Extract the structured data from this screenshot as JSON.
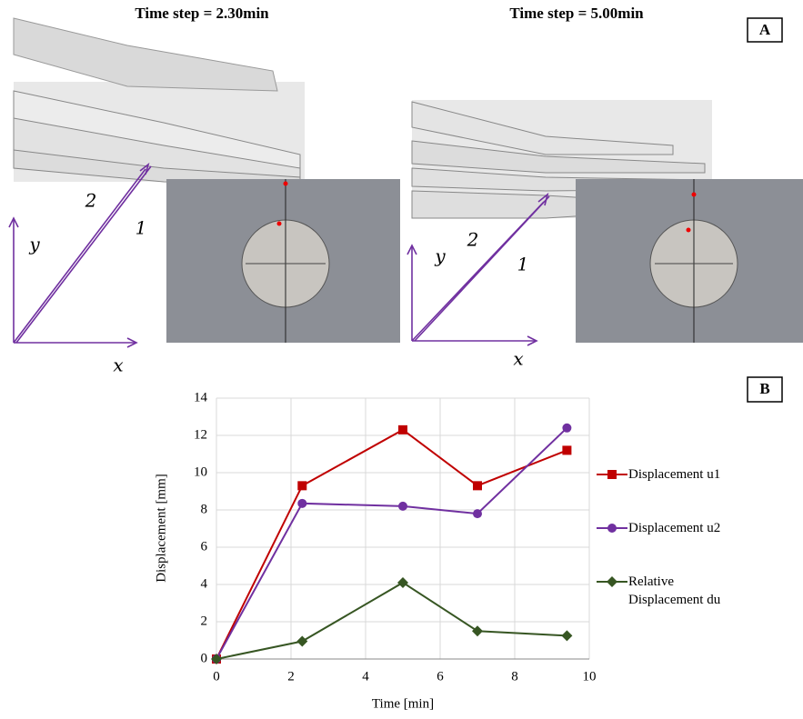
{
  "panel_a": {
    "label": "A",
    "left": {
      "title": "Time step = 2.30min",
      "x_axis": "x",
      "y_axis": "y",
      "marker_1": "1",
      "marker_2": "2"
    },
    "right": {
      "title": "Time step = 5.00min",
      "x_axis": "x",
      "y_axis": "y",
      "marker_1": "1",
      "marker_2": "2"
    }
  },
  "chart_data": {
    "type": "line",
    "panel_label": "B",
    "x_label": "Time [min]",
    "y_label": "Displacement [mm]",
    "x": [
      0,
      2.3,
      5,
      7,
      9.4
    ],
    "series": [
      {
        "name": "Displacement u1",
        "color": "#c00000",
        "marker": "square",
        "values": [
          0,
          9.3,
          12.3,
          9.3,
          11.2
        ]
      },
      {
        "name": "Displacement u2",
        "color": "#7030a0",
        "marker": "circle",
        "values": [
          0,
          8.35,
          8.2,
          7.8,
          12.4
        ]
      },
      {
        "name": "Relative Displacement du",
        "color": "#375623",
        "marker": "diamond",
        "values": [
          0,
          0.95,
          4.1,
          1.5,
          1.25
        ]
      }
    ],
    "xlim": [
      0,
      10
    ],
    "xticks": [
      0,
      2,
      4,
      6,
      8,
      10
    ],
    "ylim": [
      0,
      14
    ],
    "yticks": [
      0,
      2,
      4,
      6,
      8,
      10,
      12,
      14
    ],
    "grid": true
  }
}
